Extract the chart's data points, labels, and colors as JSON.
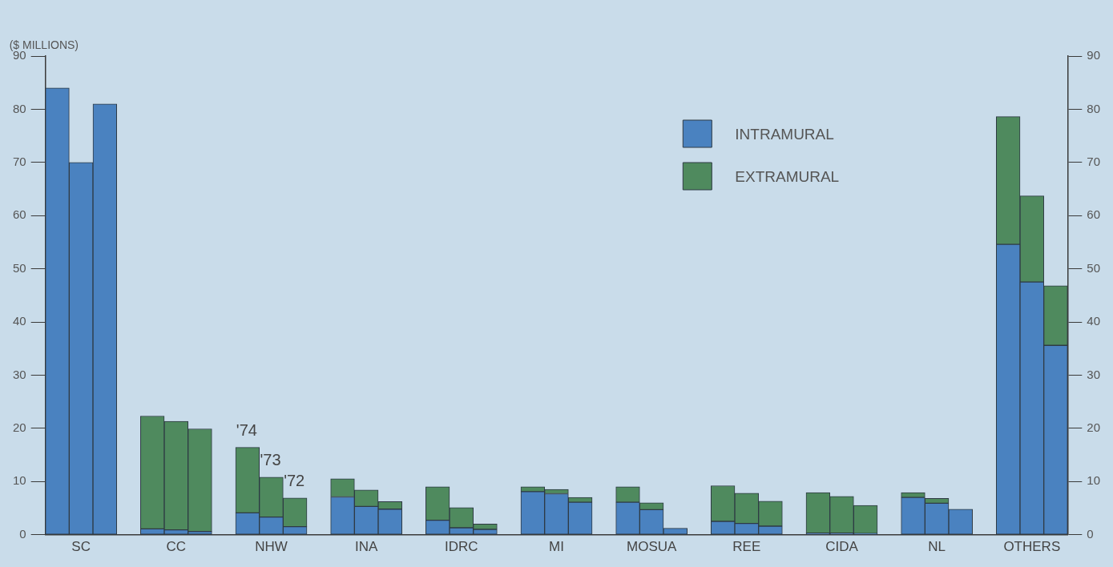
{
  "chart_data": {
    "type": "bar",
    "stacked": true,
    "ylabel": "($ MILLIONS)",
    "categories": [
      null,
      "SC",
      null,
      null,
      null,
      "CC",
      null,
      null,
      null,
      "NHW",
      null,
      null,
      null,
      "INA",
      null,
      null,
      null,
      "IDRC",
      null,
      null,
      null,
      "MI",
      null,
      null,
      null,
      "MOSUA",
      null,
      null,
      null,
      "REE",
      null,
      null,
      null,
      "CIDA",
      null,
      null,
      null,
      "NL",
      null,
      null,
      null,
      "OTHERS",
      null
    ],
    "series": [
      {
        "name": "INTRAMURAL",
        "color": "#4a82c0",
        "values": [
          84,
          70,
          81,
          null,
          1.1,
          0.9,
          0.6,
          null,
          4.1,
          3.3,
          1.5,
          null,
          7.1,
          5.3,
          4.8,
          null,
          2.7,
          1.3,
          1.0,
          null,
          8.1,
          7.7,
          6.1,
          null,
          6.1,
          4.7,
          1.2,
          null,
          2.5,
          2.1,
          1.6,
          null,
          0.3,
          0.3,
          0.2,
          null,
          7.0,
          5.9,
          4.8,
          null,
          54.6,
          47.5,
          35.6
        ]
      },
      {
        "name": "EXTRAMURAL",
        "color": "#4f8a5e",
        "values": [
          0,
          0,
          0,
          null,
          21.2,
          20.4,
          19.3,
          null,
          12.3,
          7.5,
          5.4,
          null,
          3.4,
          3.1,
          1.4,
          null,
          6.3,
          3.8,
          1.0,
          null,
          0.9,
          0.8,
          0.9,
          null,
          2.9,
          1.3,
          0,
          null,
          6.7,
          5.7,
          4.7,
          null,
          7.6,
          6.9,
          5.3,
          null,
          0.9,
          0.9,
          0,
          null,
          24.0,
          16.2,
          11.2
        ]
      }
    ],
    "ylim": [
      0,
      90
    ],
    "yticks": [
      0,
      10,
      20,
      30,
      40,
      50,
      60,
      70,
      80,
      90
    ],
    "y2lim": [
      0,
      90
    ],
    "y2ticks": [
      0,
      10,
      20,
      30,
      40,
      50,
      60,
      70,
      80,
      90
    ],
    "annotations": [
      {
        "text": "'74",
        "y": 16.4
      },
      {
        "text": "'73",
        "x": "NHW",
        "y": 10.8
      },
      {
        "text": "'72",
        "y": 6.9
      }
    ],
    "legend": "top right",
    "grid": false
  }
}
